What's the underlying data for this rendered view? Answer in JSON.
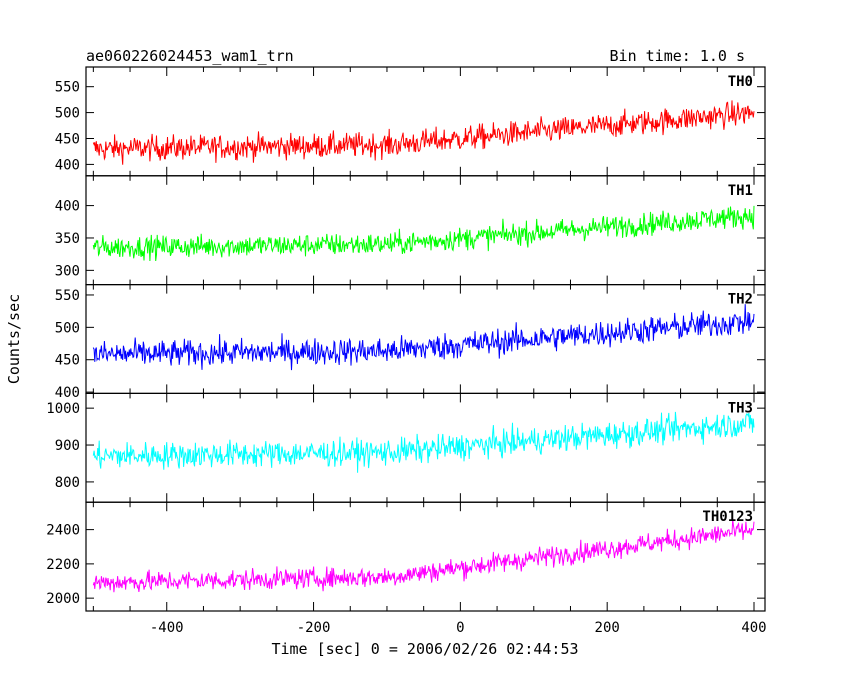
{
  "header": {
    "title": "ae060226024453_wam1_trn",
    "bin_time": "Bin time: 1.0 s"
  },
  "chart_data": {
    "type": "line",
    "xlabel": "Time [sec] 0 = 2006/02/26 02:44:53",
    "ylabel": "Counts/sec",
    "xlim": [
      -510,
      415
    ],
    "x_ticks": [
      -400,
      -200,
      0,
      200,
      400
    ],
    "x_start": -500,
    "x_end": 400,
    "x_step": 1,
    "panels": [
      {
        "name": "TH0",
        "color": "#ff0000",
        "ylim": [
          378,
          588
        ],
        "ticks": [
          400,
          450,
          500,
          550
        ],
        "base_start": 430,
        "base_end": 500,
        "noise": 22
      },
      {
        "name": "TH1",
        "color": "#00ff00",
        "ylim": [
          278,
          446
        ],
        "ticks": [
          300,
          350,
          400
        ],
        "base_start": 335,
        "base_end": 385,
        "noise": 16
      },
      {
        "name": "TH2",
        "color": "#0000ff",
        "ylim": [
          398,
          566
        ],
        "ticks": [
          400,
          450,
          500,
          550
        ],
        "base_start": 458,
        "base_end": 510,
        "noise": 19
      },
      {
        "name": "TH3",
        "color": "#00ffff",
        "ylim": [
          745,
          1040
        ],
        "ticks": [
          800,
          900,
          1000
        ],
        "base_start": 870,
        "base_end": 960,
        "noise": 33
      },
      {
        "name": "TH0123",
        "color": "#ff00ff",
        "ylim": [
          1925,
          2560
        ],
        "ticks": [
          2000,
          2200,
          2400
        ],
        "base_start": 2090,
        "base_end": 2400,
        "noise": 55
      }
    ]
  }
}
